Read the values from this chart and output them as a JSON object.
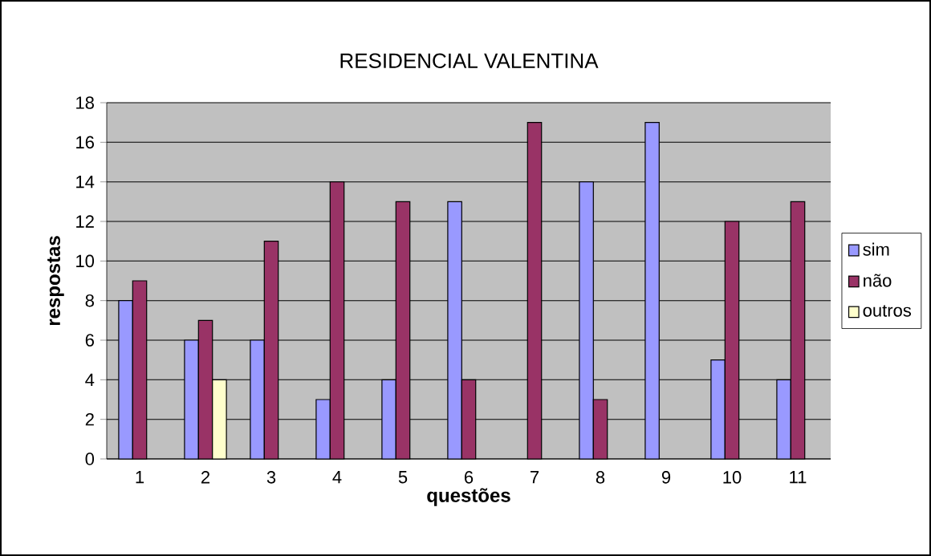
{
  "chart_data": {
    "type": "bar",
    "title": "RESIDENCIAL VALENTINA",
    "xlabel": "questões",
    "ylabel": "respostas",
    "categories": [
      "1",
      "2",
      "3",
      "4",
      "5",
      "6",
      "7",
      "8",
      "9",
      "10",
      "11"
    ],
    "series": [
      {
        "name": "sim",
        "color": "#9999ff",
        "values": [
          8,
          6,
          6,
          3,
          4,
          13,
          null,
          14,
          17,
          5,
          4
        ]
      },
      {
        "name": "não",
        "color": "#993366",
        "values": [
          9,
          7,
          11,
          14,
          13,
          4,
          17,
          3,
          null,
          12,
          13
        ]
      },
      {
        "name": "outros",
        "color": "#ffffcc",
        "values": [
          null,
          4,
          null,
          null,
          null,
          null,
          null,
          null,
          null,
          null,
          null
        ]
      }
    ],
    "ylim": [
      0,
      18
    ],
    "yticks": [
      0,
      2,
      4,
      6,
      8,
      10,
      12,
      14,
      16,
      18
    ],
    "grid": "y",
    "legend": "right"
  }
}
